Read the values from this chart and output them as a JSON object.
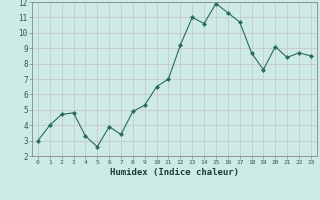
{
  "x": [
    0,
    1,
    2,
    3,
    4,
    5,
    6,
    7,
    8,
    9,
    10,
    11,
    12,
    13,
    14,
    15,
    16,
    17,
    18,
    19,
    20,
    21,
    22,
    23
  ],
  "y": [
    3.0,
    4.0,
    4.7,
    4.8,
    3.3,
    2.6,
    3.9,
    3.4,
    4.9,
    5.3,
    6.5,
    7.0,
    9.2,
    11.0,
    10.6,
    11.9,
    11.3,
    10.7,
    8.7,
    7.6,
    9.1,
    8.4,
    8.7,
    8.5
  ],
  "xlabel": "Humidex (Indice chaleur)",
  "ylim": [
    2,
    12
  ],
  "xlim": [
    -0.5,
    23.5
  ],
  "yticks": [
    2,
    3,
    4,
    5,
    6,
    7,
    8,
    9,
    10,
    11,
    12
  ],
  "xticks": [
    0,
    1,
    2,
    3,
    4,
    5,
    6,
    7,
    8,
    9,
    10,
    11,
    12,
    13,
    14,
    15,
    16,
    17,
    18,
    19,
    20,
    21,
    22,
    23
  ],
  "line_color": "#2a6b5e",
  "marker_color": "#2a6b5e",
  "bg_color": "#cdeae4",
  "grid_color": "#c8c8cc",
  "tick_label_color": "#2a5c50",
  "xlabel_color": "#1a3c34",
  "spine_color": "#888888"
}
